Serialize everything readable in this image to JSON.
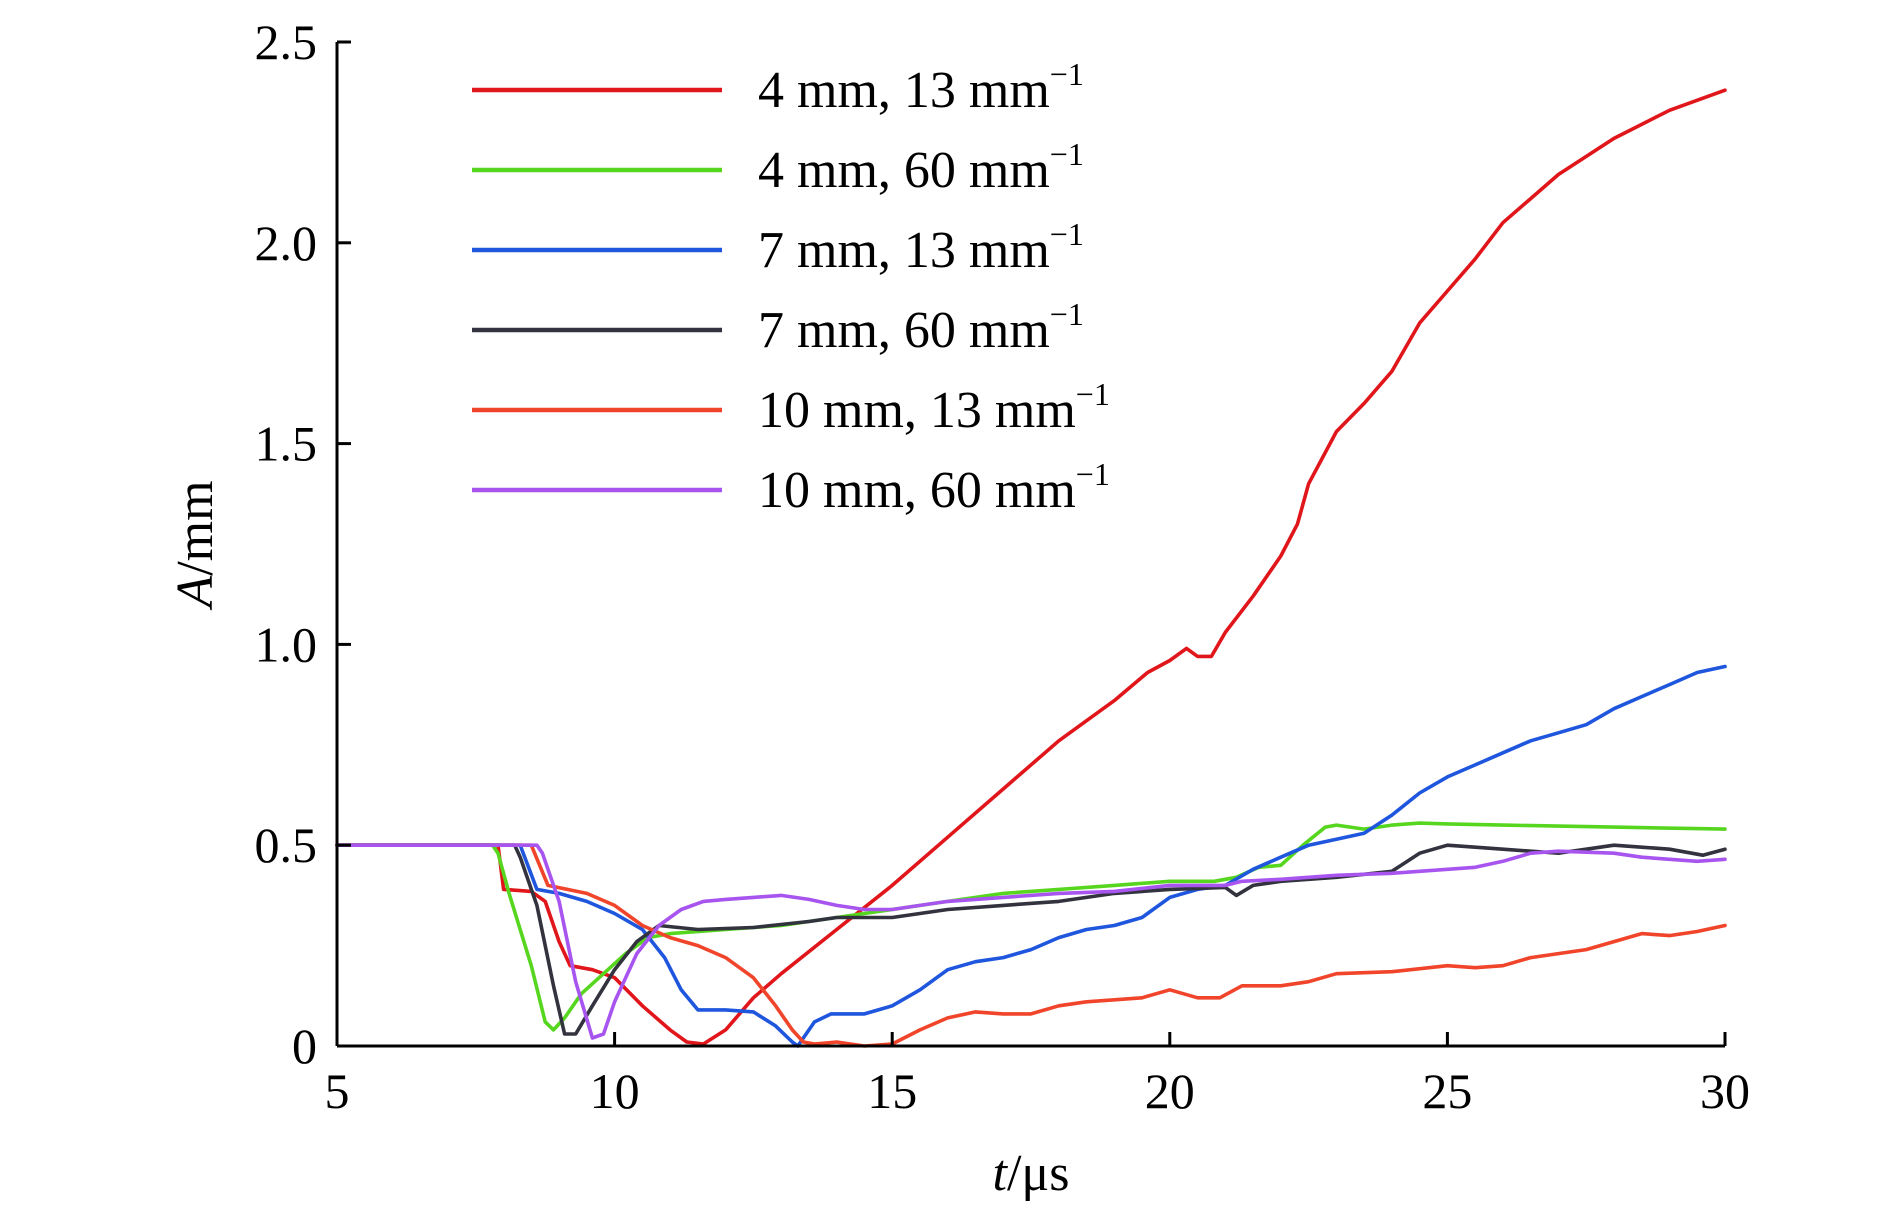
{
  "chart_data": {
    "type": "line",
    "title": "",
    "xlabel": {
      "var": "t",
      "unit": "/μs"
    },
    "ylabel": {
      "var": "A",
      "unit": "/mm"
    },
    "xlim": [
      5,
      30
    ],
    "ylim": [
      0,
      2.5
    ],
    "xticks": [
      5,
      10,
      15,
      20,
      25,
      30
    ],
    "xtick_labels": [
      "5",
      "10",
      "15",
      "20",
      "25",
      "30"
    ],
    "yticks": [
      0,
      0.5,
      1.0,
      1.5,
      2.0,
      2.5
    ],
    "ytick_labels": [
      "0",
      "0.5",
      "1.0",
      "1.5",
      "2.0",
      "2.5"
    ],
    "grid": false,
    "legend_position": "top-left",
    "series": [
      {
        "label_main": "4 mm,  13 mm",
        "label_sup": "−1",
        "color": "#e0161b",
        "points": [
          [
            5,
            0.5
          ],
          [
            7.9,
            0.5
          ],
          [
            8.0,
            0.39
          ],
          [
            8.5,
            0.385
          ],
          [
            8.75,
            0.36
          ],
          [
            9.0,
            0.26
          ],
          [
            9.2,
            0.2
          ],
          [
            9.6,
            0.19
          ],
          [
            10.0,
            0.17
          ],
          [
            10.5,
            0.1
          ],
          [
            11.0,
            0.04
          ],
          [
            11.3,
            0.01
          ],
          [
            11.6,
            0.005
          ],
          [
            12.0,
            0.04
          ],
          [
            12.5,
            0.12
          ],
          [
            13.0,
            0.18
          ],
          [
            14.0,
            0.29
          ],
          [
            15.0,
            0.4
          ],
          [
            16.0,
            0.52
          ],
          [
            17.0,
            0.64
          ],
          [
            18.0,
            0.76
          ],
          [
            19.0,
            0.86
          ],
          [
            19.6,
            0.93
          ],
          [
            20.0,
            0.96
          ],
          [
            20.3,
            0.99
          ],
          [
            20.5,
            0.97
          ],
          [
            20.75,
            0.97
          ],
          [
            21.0,
            1.03
          ],
          [
            21.5,
            1.12
          ],
          [
            22.0,
            1.22
          ],
          [
            22.3,
            1.3
          ],
          [
            22.5,
            1.4
          ],
          [
            23.0,
            1.53
          ],
          [
            23.5,
            1.6
          ],
          [
            24.0,
            1.68
          ],
          [
            24.5,
            1.8
          ],
          [
            25.0,
            1.88
          ],
          [
            25.5,
            1.96
          ],
          [
            26.0,
            2.05
          ],
          [
            26.5,
            2.11
          ],
          [
            27.0,
            2.17
          ],
          [
            28.0,
            2.26
          ],
          [
            29.0,
            2.33
          ],
          [
            30.0,
            2.38
          ]
        ]
      },
      {
        "label_main": "4 mm,  60 mm",
        "label_sup": "−1",
        "color": "#57d61f",
        "points": [
          [
            5,
            0.5
          ],
          [
            7.8,
            0.5
          ],
          [
            7.9,
            0.48
          ],
          [
            8.1,
            0.38
          ],
          [
            8.5,
            0.2
          ],
          [
            8.75,
            0.06
          ],
          [
            8.9,
            0.04
          ],
          [
            9.1,
            0.07
          ],
          [
            9.4,
            0.13
          ],
          [
            9.8,
            0.18
          ],
          [
            10.2,
            0.23
          ],
          [
            10.6,
            0.27
          ],
          [
            11.0,
            0.28
          ],
          [
            12.0,
            0.29
          ],
          [
            13.0,
            0.3
          ],
          [
            14.0,
            0.32
          ],
          [
            15.0,
            0.34
          ],
          [
            16.0,
            0.36
          ],
          [
            17.0,
            0.38
          ],
          [
            18.0,
            0.39
          ],
          [
            19.0,
            0.4
          ],
          [
            20.0,
            0.41
          ],
          [
            20.8,
            0.41
          ],
          [
            21.2,
            0.42
          ],
          [
            21.6,
            0.445
          ],
          [
            22.0,
            0.45
          ],
          [
            22.4,
            0.5
          ],
          [
            22.8,
            0.545
          ],
          [
            23.0,
            0.55
          ],
          [
            23.5,
            0.54
          ],
          [
            24.0,
            0.55
          ],
          [
            24.5,
            0.555
          ],
          [
            25.0,
            0.553
          ],
          [
            26.0,
            0.55
          ],
          [
            28.0,
            0.545
          ],
          [
            30.0,
            0.54
          ]
        ]
      },
      {
        "label_main": "7 mm,  13 mm",
        "label_sup": "−1",
        "color": "#1f56de",
        "points": [
          [
            5,
            0.5
          ],
          [
            8.3,
            0.5
          ],
          [
            8.6,
            0.39
          ],
          [
            9.0,
            0.38
          ],
          [
            9.5,
            0.36
          ],
          [
            10.0,
            0.33
          ],
          [
            10.5,
            0.29
          ],
          [
            10.9,
            0.22
          ],
          [
            11.2,
            0.14
          ],
          [
            11.5,
            0.09
          ],
          [
            12.0,
            0.09
          ],
          [
            12.5,
            0.085
          ],
          [
            12.9,
            0.05
          ],
          [
            13.2,
            0.01
          ],
          [
            13.3,
            0.0
          ],
          [
            13.6,
            0.06
          ],
          [
            13.9,
            0.08
          ],
          [
            14.5,
            0.08
          ],
          [
            15.0,
            0.1
          ],
          [
            15.5,
            0.14
          ],
          [
            16.0,
            0.19
          ],
          [
            16.5,
            0.21
          ],
          [
            17.0,
            0.22
          ],
          [
            17.5,
            0.24
          ],
          [
            18.0,
            0.27
          ],
          [
            18.5,
            0.29
          ],
          [
            19.0,
            0.3
          ],
          [
            19.5,
            0.32
          ],
          [
            20.0,
            0.37
          ],
          [
            20.5,
            0.39
          ],
          [
            21.0,
            0.4
          ],
          [
            21.5,
            0.44
          ],
          [
            22.0,
            0.47
          ],
          [
            22.5,
            0.5
          ],
          [
            23.0,
            0.515
          ],
          [
            23.5,
            0.53
          ],
          [
            24.0,
            0.575
          ],
          [
            24.5,
            0.63
          ],
          [
            25.0,
            0.67
          ],
          [
            25.5,
            0.7
          ],
          [
            26.0,
            0.73
          ],
          [
            26.5,
            0.76
          ],
          [
            27.0,
            0.78
          ],
          [
            27.5,
            0.8
          ],
          [
            28.0,
            0.84
          ],
          [
            28.5,
            0.87
          ],
          [
            29.0,
            0.9
          ],
          [
            29.5,
            0.93
          ],
          [
            30.0,
            0.945
          ]
        ]
      },
      {
        "label_main": "7 mm,  60 mm",
        "label_sup": "−1",
        "color": "#33333f",
        "points": [
          [
            5,
            0.5
          ],
          [
            8.2,
            0.5
          ],
          [
            8.3,
            0.47
          ],
          [
            8.6,
            0.35
          ],
          [
            8.9,
            0.15
          ],
          [
            9.1,
            0.03
          ],
          [
            9.3,
            0.03
          ],
          [
            9.6,
            0.1
          ],
          [
            10.0,
            0.19
          ],
          [
            10.4,
            0.26
          ],
          [
            10.8,
            0.3
          ],
          [
            11.5,
            0.29
          ],
          [
            12.5,
            0.295
          ],
          [
            13.5,
            0.31
          ],
          [
            14.0,
            0.32
          ],
          [
            15.0,
            0.32
          ],
          [
            16.0,
            0.34
          ],
          [
            17.0,
            0.35
          ],
          [
            18.0,
            0.36
          ],
          [
            19.0,
            0.38
          ],
          [
            20.0,
            0.39
          ],
          [
            21.0,
            0.395
          ],
          [
            21.2,
            0.375
          ],
          [
            21.5,
            0.4
          ],
          [
            22.0,
            0.41
          ],
          [
            23.0,
            0.42
          ],
          [
            24.0,
            0.435
          ],
          [
            24.5,
            0.48
          ],
          [
            25.0,
            0.5
          ],
          [
            25.5,
            0.495
          ],
          [
            26.0,
            0.49
          ],
          [
            27.0,
            0.48
          ],
          [
            28.0,
            0.5
          ],
          [
            29.0,
            0.49
          ],
          [
            29.6,
            0.475
          ],
          [
            30.0,
            0.49
          ]
        ]
      },
      {
        "label_main": "10 mm,  13 mm",
        "label_sup": "−1",
        "color": "#f1452b",
        "points": [
          [
            5,
            0.5
          ],
          [
            8.5,
            0.5
          ],
          [
            8.8,
            0.4
          ],
          [
            9.5,
            0.38
          ],
          [
            10.0,
            0.35
          ],
          [
            10.5,
            0.3
          ],
          [
            11.0,
            0.27
          ],
          [
            11.5,
            0.25
          ],
          [
            12.0,
            0.22
          ],
          [
            12.5,
            0.17
          ],
          [
            12.9,
            0.1
          ],
          [
            13.2,
            0.04
          ],
          [
            13.4,
            0.01
          ],
          [
            13.6,
            0.005
          ],
          [
            14.0,
            0.01
          ],
          [
            14.5,
            0.0
          ],
          [
            15.0,
            0.005
          ],
          [
            15.5,
            0.04
          ],
          [
            16.0,
            0.07
          ],
          [
            16.5,
            0.085
          ],
          [
            17.0,
            0.08
          ],
          [
            17.5,
            0.08
          ],
          [
            18.0,
            0.1
          ],
          [
            18.5,
            0.11
          ],
          [
            19.0,
            0.115
          ],
          [
            19.5,
            0.12
          ],
          [
            20.0,
            0.14
          ],
          [
            20.5,
            0.12
          ],
          [
            20.9,
            0.12
          ],
          [
            21.3,
            0.15
          ],
          [
            22.0,
            0.15
          ],
          [
            22.5,
            0.16
          ],
          [
            23.0,
            0.18
          ],
          [
            24.0,
            0.185
          ],
          [
            25.0,
            0.2
          ],
          [
            25.5,
            0.195
          ],
          [
            26.0,
            0.2
          ],
          [
            26.5,
            0.22
          ],
          [
            27.0,
            0.23
          ],
          [
            27.5,
            0.24
          ],
          [
            28.0,
            0.26
          ],
          [
            28.5,
            0.28
          ],
          [
            29.0,
            0.275
          ],
          [
            29.5,
            0.285
          ],
          [
            30.0,
            0.3
          ]
        ]
      },
      {
        "label_main": "10 mm,  60 mm",
        "label_sup": "−1",
        "color": "#a855f0",
        "points": [
          [
            5,
            0.5
          ],
          [
            8.6,
            0.5
          ],
          [
            8.7,
            0.48
          ],
          [
            9.0,
            0.36
          ],
          [
            9.3,
            0.16
          ],
          [
            9.6,
            0.02
          ],
          [
            9.8,
            0.03
          ],
          [
            10.0,
            0.11
          ],
          [
            10.4,
            0.23
          ],
          [
            10.8,
            0.3
          ],
          [
            11.2,
            0.34
          ],
          [
            11.6,
            0.36
          ],
          [
            12.0,
            0.365
          ],
          [
            12.5,
            0.37
          ],
          [
            13.0,
            0.375
          ],
          [
            13.5,
            0.365
          ],
          [
            14.0,
            0.35
          ],
          [
            14.5,
            0.34
          ],
          [
            15.0,
            0.34
          ],
          [
            15.5,
            0.35
          ],
          [
            16.0,
            0.36
          ],
          [
            17.0,
            0.37
          ],
          [
            18.0,
            0.38
          ],
          [
            19.0,
            0.385
          ],
          [
            20.0,
            0.4
          ],
          [
            21.0,
            0.4
          ],
          [
            21.3,
            0.41
          ],
          [
            22.0,
            0.415
          ],
          [
            23.0,
            0.425
          ],
          [
            24.0,
            0.43
          ],
          [
            25.0,
            0.44
          ],
          [
            25.5,
            0.445
          ],
          [
            26.0,
            0.46
          ],
          [
            26.5,
            0.48
          ],
          [
            27.0,
            0.485
          ],
          [
            28.0,
            0.48
          ],
          [
            28.5,
            0.47
          ],
          [
            29.0,
            0.465
          ],
          [
            29.5,
            0.46
          ],
          [
            30.0,
            0.465
          ]
        ]
      }
    ]
  }
}
